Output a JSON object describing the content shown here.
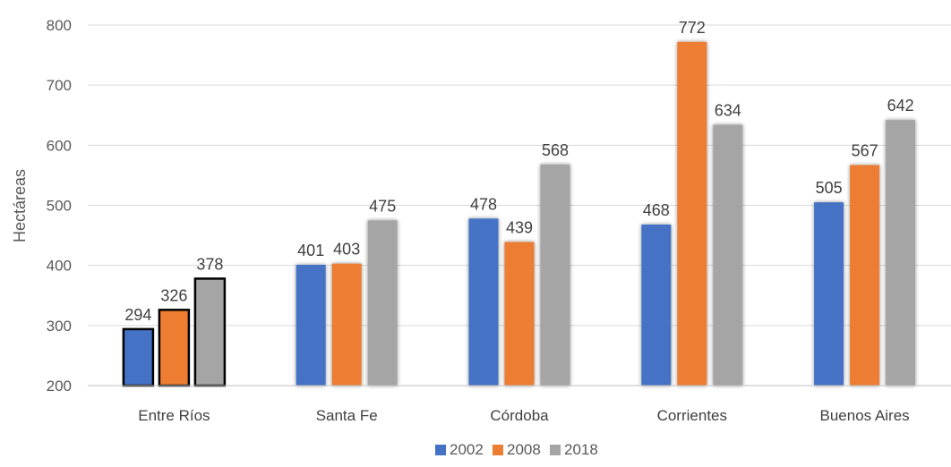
{
  "chart_data": {
    "type": "bar",
    "title": "",
    "xlabel": "",
    "ylabel": "Hectáreas",
    "ylim": [
      200,
      800
    ],
    "yticks": [
      200,
      300,
      400,
      500,
      600,
      700,
      800
    ],
    "grid": true,
    "legend_position": "bottom",
    "categories": [
      "Entre Ríos",
      "Santa Fe",
      "Córdoba",
      "Corrientes",
      "Buenos Aires"
    ],
    "highlighted_category": "Entre Ríos",
    "series": [
      {
        "name": "2002",
        "color": "#4472C4",
        "values": [
          294,
          401,
          478,
          468,
          505
        ]
      },
      {
        "name": "2008",
        "color": "#ED7D31",
        "values": [
          326,
          403,
          439,
          772,
          567
        ]
      },
      {
        "name": "2018",
        "color": "#A5A5A5",
        "values": [
          378,
          475,
          568,
          634,
          642
        ]
      }
    ]
  }
}
